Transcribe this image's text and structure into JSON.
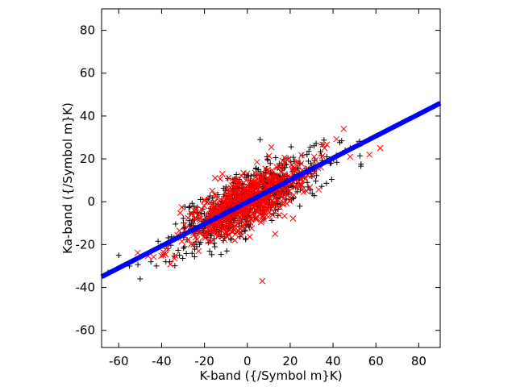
{
  "chart_data": {
    "type": "scatter",
    "title": "",
    "xlabel": "K-band ({/Symbol m}K)",
    "ylabel": "Ka-band ({/Symbol m}K)",
    "xlim": [
      -68,
      90
    ],
    "ylim": [
      -68,
      90
    ],
    "xticks": [
      -60,
      -40,
      -20,
      0,
      20,
      40,
      60,
      80
    ],
    "yticks": [
      -60,
      -40,
      -20,
      0,
      20,
      40,
      60,
      80
    ],
    "grid": false,
    "legend": "none",
    "series": [
      {
        "marker": "plus",
        "color": "#000000",
        "cluster": {
          "count": 650,
          "x_mean": 0,
          "x_sd": 17,
          "slope": 0.5,
          "scatter_sd": 6.5,
          "seed": 7
        },
        "outliers": [
          [
            -50,
            -36
          ],
          [
            -55,
            -30
          ],
          [
            -45,
            -28
          ],
          [
            -38,
            -28
          ],
          [
            6,
            29
          ],
          [
            48,
            25
          ],
          [
            -60,
            -25
          ],
          [
            -65,
            -33
          ]
        ]
      },
      {
        "marker": "cross",
        "color": "#ff0000",
        "cluster": {
          "count": 700,
          "x_mean": 0,
          "x_sd": 15,
          "slope": 0.5,
          "scatter_sd": 6.0,
          "seed": 21
        },
        "outliers": [
          [
            7,
            -37
          ],
          [
            45,
            34
          ],
          [
            52,
            27
          ],
          [
            62,
            25
          ],
          [
            57,
            22
          ],
          [
            48,
            21
          ],
          [
            13,
            -15
          ]
        ]
      },
      {
        "name_hidden": true,
        "marker": "line",
        "color": "#0000ff",
        "x": [
          -68,
          90
        ],
        "y": [
          -35,
          46
        ]
      }
    ]
  }
}
